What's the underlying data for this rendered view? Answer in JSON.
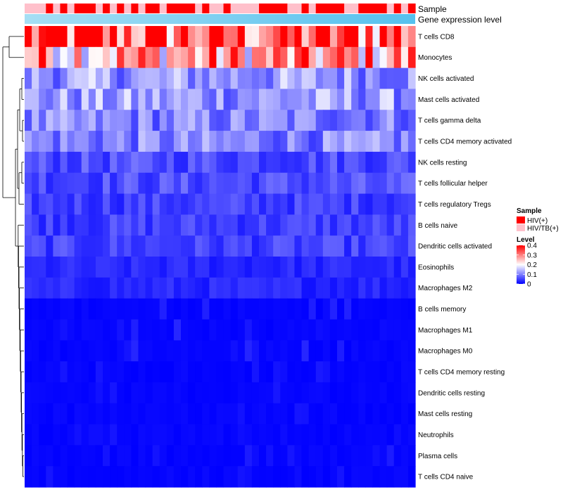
{
  "chart_data": {
    "type": "heatmap",
    "annotation_tracks": [
      {
        "name": "Sample",
        "values": [
          "HIV/TB(+)",
          "HIV/TB(+)",
          "HIV/TB(+)",
          "HIV(+)",
          "HIV/TB(+)",
          "HIV(+)",
          "HIV/TB(+)",
          "HIV(+)",
          "HIV(+)",
          "HIV(+)",
          "HIV/TB(+)",
          "HIV(+)",
          "HIV/TB(+)",
          "HIV(+)",
          "HIV/TB(+)",
          "HIV(+)",
          "HIV/TB(+)",
          "HIV(+)",
          "HIV(+)",
          "HIV/TB(+)",
          "HIV(+)",
          "HIV(+)",
          "HIV(+)",
          "HIV(+)",
          "HIV/TB(+)",
          "HIV(+)",
          "HIV/TB(+)",
          "HIV/TB(+)",
          "HIV(+)",
          "HIV/TB(+)",
          "HIV/TB(+)",
          "HIV/TB(+)",
          "HIV/TB(+)",
          "HIV(+)",
          "HIV(+)",
          "HIV(+)",
          "HIV(+)",
          "HIV/TB(+)",
          "HIV/TB(+)",
          "HIV(+)",
          "HIV/TB(+)",
          "HIV(+)",
          "HIV(+)",
          "HIV(+)",
          "HIV(+)",
          "HIV/TB(+)",
          "HIV/TB(+)",
          "HIV(+)",
          "HIV(+)",
          "HIV(+)",
          "HIV(+)",
          "HIV/TB(+)",
          "HIV(+)",
          "HIV/TB(+)",
          "HIV(+)"
        ]
      },
      {
        "name": "Gene expression level",
        "gradient": [
          "#a6def4",
          "#56c1ee"
        ]
      }
    ],
    "rows": [
      "T cells CD8",
      "Monocytes",
      "NK cells activated",
      "Mast cells activated",
      "T cells gamma delta",
      "T cells CD4 memory activated",
      "NK cells resting",
      "T cells follicular helper",
      "T cells regulatory  Tregs",
      "B cells naive",
      "Dendritic cells activated",
      "Eosinophils",
      "Macrophages M2",
      "B cells memory",
      "Macrophages M1",
      "Macrophages M0",
      "T cells CD4 memory resting",
      "Dendritic cells resting",
      "Mast cells resting",
      "Neutrophils",
      "Plasma cells",
      "T cells CD4 naive"
    ],
    "n_columns": 55,
    "row_mean_levels": [
      0.34,
      0.27,
      0.12,
      0.12,
      0.1,
      0.1,
      0.06,
      0.06,
      0.05,
      0.05,
      0.05,
      0.03,
      0.03,
      0.02,
      0.02,
      0.02,
      0.01,
      0.01,
      0.01,
      0.01,
      0.015,
      0.01
    ],
    "color_scale": {
      "min": 0,
      "mid": 0.2,
      "max": 0.4,
      "low": "#0000ff",
      "mid_color": "#ffffff",
      "high": "#ff0000"
    },
    "dendrogram": "rows clustered (hierarchical)",
    "legends": {
      "sample": {
        "title": "Sample",
        "entries": [
          {
            "label": "HIV(+)",
            "color": "#ff0000"
          },
          {
            "label": "HIV/TB(+)",
            "color": "#ffc0cb"
          }
        ]
      },
      "level": {
        "title": "Level",
        "ticks": [
          "0.4",
          "0.3",
          "0.2",
          "0.1",
          "0"
        ]
      }
    },
    "legend_position": "right"
  }
}
